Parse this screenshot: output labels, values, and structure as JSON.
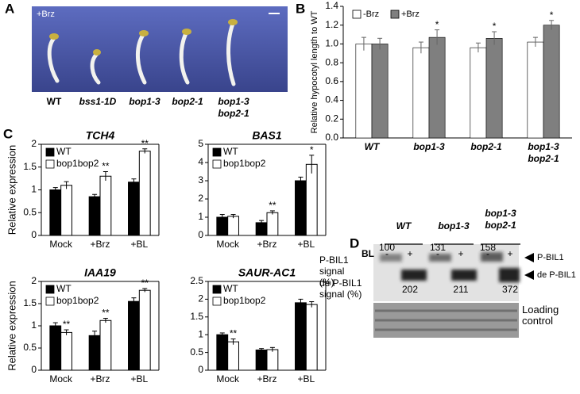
{
  "photo": {
    "letter": "A",
    "treatment": "+Brz",
    "labels": [
      "WT",
      "bss1-1D",
      "bop1-3",
      "bop2-1",
      "bop1-3\nbop2-1"
    ]
  },
  "chart_data": [
    {
      "type": "bar",
      "letter": "B",
      "ylabel": "Relative hypocotyl length to WT",
      "categories": [
        "WT",
        "bop1-3",
        "bop2-1",
        "bop1-3\nbop2-1"
      ],
      "series": [
        {
          "name": "-Brz",
          "color": "#ffffff",
          "values": [
            1.0,
            0.96,
            0.96,
            1.02
          ],
          "errors": [
            0.07,
            0.06,
            0.05,
            0.05
          ],
          "significance": [
            null,
            null,
            null,
            null
          ]
        },
        {
          "name": "+Brz",
          "color": "#7f7f7f",
          "values": [
            1.0,
            1.07,
            1.06,
            1.2
          ],
          "errors": [
            0.06,
            0.08,
            0.07,
            0.05
          ],
          "significance": [
            null,
            "*",
            "*",
            "*"
          ]
        }
      ],
      "ylim": [
        0,
        1.4
      ],
      "yticks": [
        {
          "value": 0,
          "label": "0.0"
        },
        0.2,
        0.4,
        0.6,
        0.8,
        {
          "value": 1,
          "label": "1.0"
        },
        1.2,
        1.4
      ],
      "legend": "top"
    },
    {
      "type": "bar",
      "letter": "C",
      "title": "TCH4",
      "ylabel": "Relative expression",
      "categories": [
        "Mock",
        "+Brz",
        "+BL"
      ],
      "series": [
        {
          "name": "WT",
          "color": "#000000",
          "values": [
            1.0,
            0.85,
            1.17
          ],
          "errors": [
            0.05,
            0.05,
            0.07
          ],
          "significance": [
            null,
            null,
            null
          ]
        },
        {
          "name": "bop1bop2",
          "color": "#ffffff",
          "values": [
            1.1,
            1.3,
            1.85
          ],
          "errors": [
            0.08,
            0.1,
            0.05
          ],
          "significance": [
            null,
            "**",
            "**"
          ]
        }
      ],
      "ylim": [
        0,
        2
      ],
      "yticks": [
        0,
        0.5,
        1,
        1.5,
        2
      ],
      "legend": "upper left"
    },
    {
      "type": "bar",
      "title": "BAS1",
      "categories": [
        "Mock",
        "+Brz",
        "+BL"
      ],
      "series": [
        {
          "name": "WT",
          "color": "#000000",
          "values": [
            1.0,
            0.7,
            3.0
          ],
          "errors": [
            0.15,
            0.12,
            0.2
          ],
          "significance": [
            null,
            null,
            null
          ]
        },
        {
          "name": "bop1bop2",
          "color": "#ffffff",
          "values": [
            1.05,
            1.25,
            3.9
          ],
          "errors": [
            0.1,
            0.1,
            0.5
          ],
          "significance": [
            null,
            "**",
            "*"
          ]
        }
      ],
      "ylim": [
        0,
        5
      ],
      "yticks": [
        0,
        1,
        2,
        3,
        4,
        5
      ],
      "legend": "upper left"
    },
    {
      "type": "bar",
      "title": "IAA19",
      "ylabel": "Relative expression",
      "categories": [
        "Mock",
        "+Brz",
        "+BL"
      ],
      "series": [
        {
          "name": "WT",
          "color": "#000000",
          "values": [
            1.0,
            0.78,
            1.55
          ],
          "errors": [
            0.07,
            0.1,
            0.08
          ],
          "significance": [
            null,
            null,
            null
          ]
        },
        {
          "name": "bop1bop2",
          "color": "#ffffff",
          "values": [
            0.85,
            1.12,
            1.8
          ],
          "errors": [
            0.06,
            0.05,
            0.04
          ],
          "significance": [
            "**",
            "**",
            "**"
          ]
        }
      ],
      "ylim": [
        0,
        2
      ],
      "yticks": [
        0,
        0.5,
        1,
        1.5,
        2
      ],
      "legend": "upper left"
    },
    {
      "type": "bar",
      "title": "SAUR-AC1",
      "categories": [
        "Mock",
        "+Brz",
        "+BL"
      ],
      "series": [
        {
          "name": "WT",
          "color": "#000000",
          "values": [
            1.0,
            0.57,
            1.9
          ],
          "errors": [
            0.05,
            0.04,
            0.1
          ],
          "significance": [
            null,
            null,
            null
          ]
        },
        {
          "name": "bop1bop2",
          "color": "#ffffff",
          "values": [
            0.8,
            0.58,
            1.85
          ],
          "errors": [
            0.08,
            0.06,
            0.08
          ],
          "significance": [
            "**",
            null,
            null
          ]
        }
      ],
      "ylim": [
        0,
        2.5
      ],
      "yticks": [
        0,
        0.5,
        1,
        1.5,
        2,
        2.5
      ],
      "legend": "upper left"
    }
  ],
  "blot": {
    "letter": "D",
    "genotypes": [
      "WT",
      "bop1-3",
      "bop1-3\nbop2-1"
    ],
    "treatment": "BL",
    "signs": [
      "-",
      "+",
      "-",
      "+",
      "-",
      "+"
    ],
    "p_label": "P-BIL1\nsignal\n(%)",
    "p_values": [
      "100",
      "131",
      "158"
    ],
    "de_label": "de P-BIL1\nsignal (%)",
    "de_values": [
      "202",
      "211",
      "372"
    ],
    "arrow_p": "P-BIL1",
    "arrow_de": "de P-BIL1",
    "loading": "Loading\ncontrol"
  }
}
